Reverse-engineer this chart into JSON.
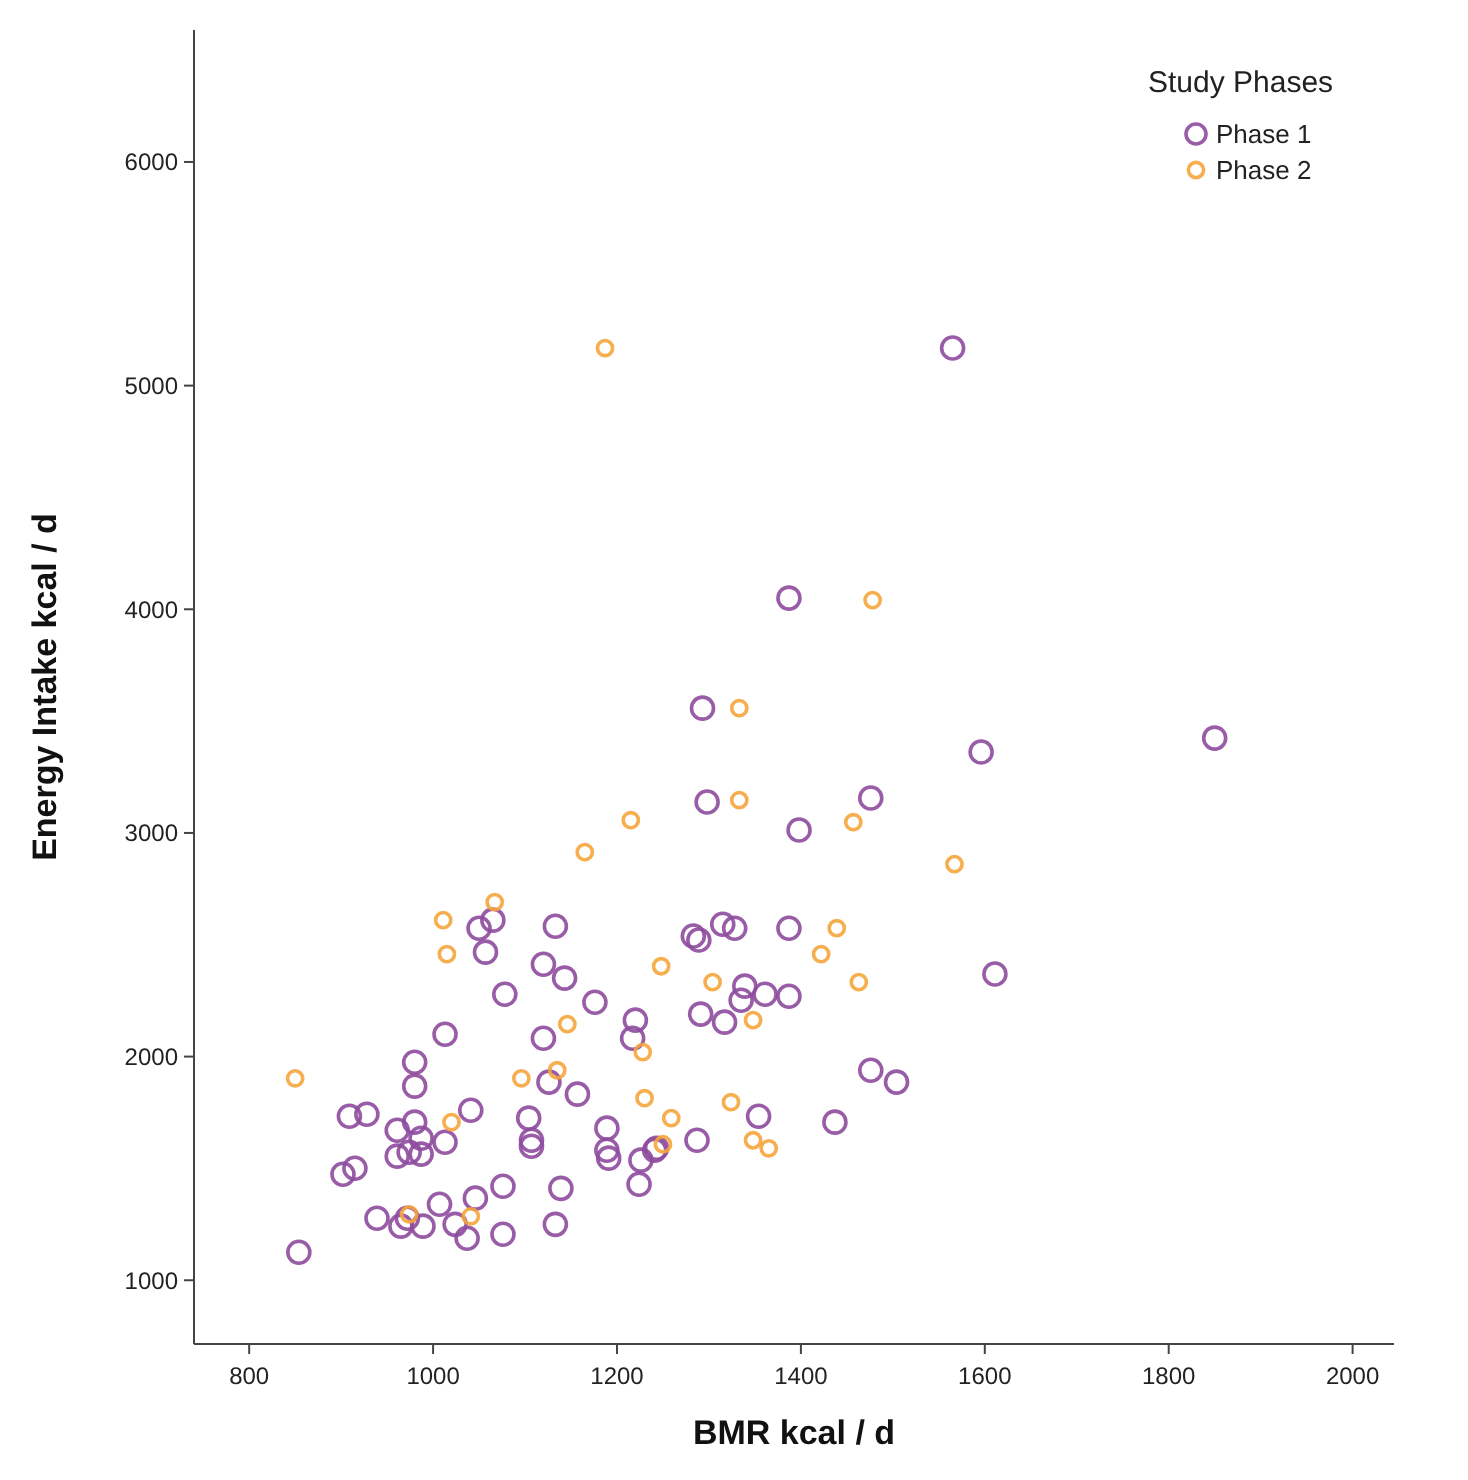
{
  "chart_data": {
    "type": "scatter",
    "xlabel": "BMR kcal / d",
    "ylabel": "Energy Intake kcal / d",
    "legend_title": "Study Phases",
    "legend": "top right",
    "marker": "circle",
    "grid": false,
    "xlim": [
      740,
      2045
    ],
    "ylim": [
      715,
      6590
    ],
    "xticks": [
      800,
      1000,
      1200,
      1400,
      1600,
      1800,
      2000
    ],
    "yticks": [
      1000,
      2000,
      3000,
      4000,
      5000,
      6000
    ],
    "series": [
      {
        "name": "Phase 1",
        "color": "#8e4b9e",
        "x": [
          1050,
          1065,
          1133,
          1057,
          1120,
          1143,
          1078,
          1176,
          1220,
          1217,
          1013,
          1120,
          980,
          980,
          1126,
          1157,
          909,
          928,
          980,
          1041,
          961,
          987,
          1104,
          1107,
          1107,
          1013,
          961,
          974,
          987,
          1189,
          1189,
          1191,
          1226,
          1241,
          1224,
          902,
          915,
          1076,
          1139,
          939,
          965,
          972,
          989,
          1007,
          1024,
          1046,
          1037,
          1076,
          1133,
          854,
          1283,
          1289,
          1315,
          1328,
          1387,
          1339,
          1335,
          1361,
          1387,
          1291,
          1317,
          1611,
          1476,
          1504,
          1354,
          1437,
          1287,
          1243,
          1565,
          1387,
          1293,
          1596,
          1850,
          1298,
          1476,
          1398
        ],
        "values": [
          2574,
          2610,
          2583,
          2467,
          2413,
          2351,
          2279,
          2243,
          2163,
          2082,
          2100,
          2082,
          1975,
          1868,
          1886,
          1832,
          1733,
          1742,
          1707,
          1760,
          1671,
          1635,
          1725,
          1626,
          1599,
          1617,
          1555,
          1572,
          1564,
          1680,
          1581,
          1546,
          1537,
          1581,
          1429,
          1474,
          1501,
          1420,
          1411,
          1277,
          1242,
          1277,
          1242,
          1340,
          1250,
          1367,
          1188,
          1206,
          1250,
          1125,
          2539,
          2521,
          2592,
          2574,
          2574,
          2315,
          2252,
          2279,
          2270,
          2190,
          2154,
          2369,
          1939,
          1886,
          1733,
          1707,
          1626,
          1590,
          5168,
          4050,
          3558,
          3362,
          3424,
          3138,
          3156,
          3013
        ]
      },
      {
        "name": "Phase 2",
        "color": "#f5a53c",
        "x": [
          1165,
          1067,
          1011,
          1015,
          1248,
          1146,
          1228,
          1096,
          1135,
          1230,
          850,
          1020,
          974,
          1041,
          1250,
          1567,
          1439,
          1422,
          1463,
          1304,
          1348,
          1324,
          1259,
          1348,
          1365,
          1187,
          1478,
          1333,
          1333,
          1215,
          1457
        ],
        "values": [
          2914,
          2691,
          2610,
          2458,
          2404,
          2145,
          2020,
          1903,
          1939,
          1814,
          1903,
          1707,
          1295,
          1286,
          1608,
          2861,
          2574,
          2458,
          2333,
          2333,
          2163,
          1796,
          1725,
          1626,
          1590,
          5168,
          4041,
          3558,
          3147,
          3057,
          3048
        ]
      }
    ]
  }
}
